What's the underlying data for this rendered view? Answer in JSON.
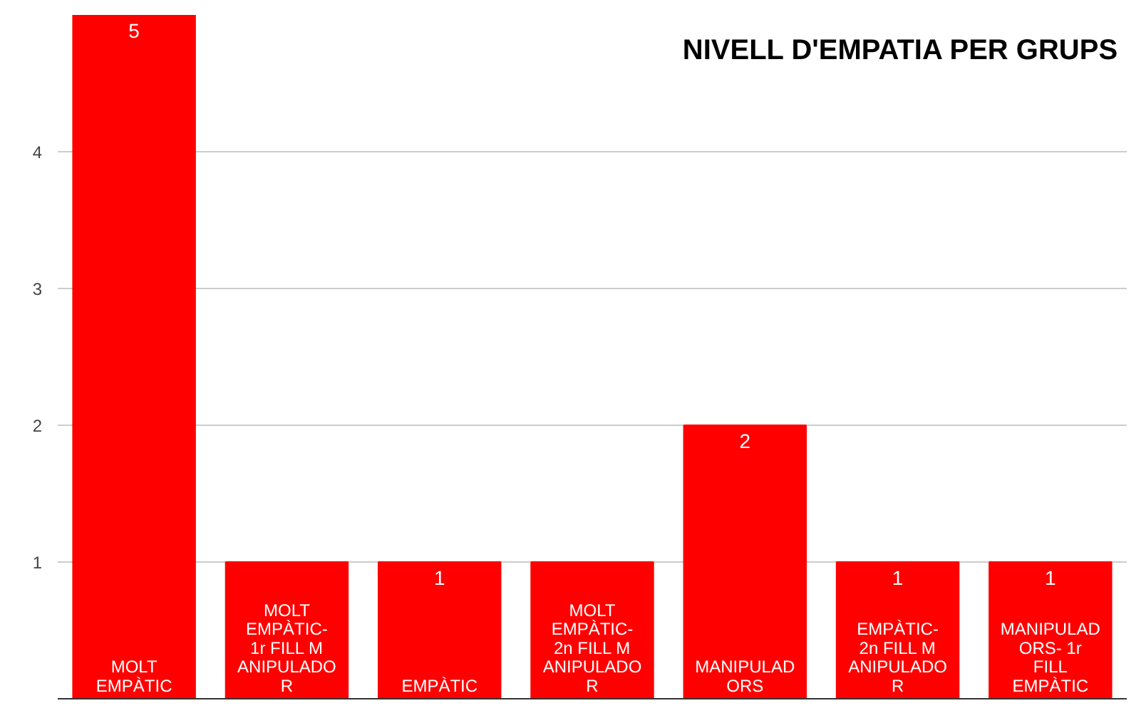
{
  "chart_data": {
    "type": "bar",
    "title": "NIVELL D'EMPATIA PER GRUPS",
    "categories": [
      "MOLT EMPÀTIC",
      "MOLT EMPÀTIC- 1r FILL MANIPULADOR",
      "EMPÀTIC",
      "MOLT EMPÀTIC- 2n FILL MANIPULADOR",
      "MANIPULADORS",
      "EMPÀTIC- 2n FILL MANIPULADOR",
      "MANIPULADORS- 1r FILL EMPÀTIC"
    ],
    "values": [
      5,
      1,
      1,
      1,
      2,
      1,
      1
    ],
    "value_labels": [
      "5",
      null,
      "1",
      null,
      "2",
      "1",
      "1"
    ],
    "color": "#ff0000",
    "ylim": [
      0,
      5
    ],
    "yticks": [
      {
        "value": 0,
        "label": null
      },
      1,
      2,
      3,
      4
    ],
    "grid": "y"
  }
}
